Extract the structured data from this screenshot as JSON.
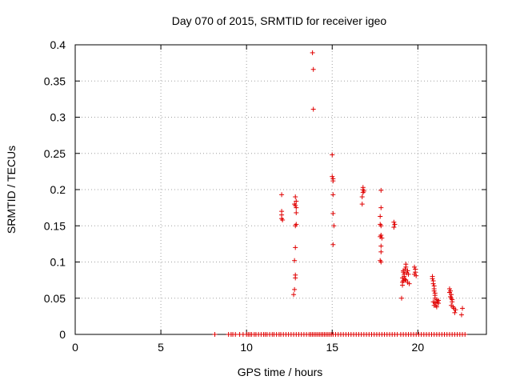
{
  "chart_data": {
    "type": "scatter",
    "title": "Day 070 of 2015, SRMTID for receiver igeo",
    "xlabel": "GPS time / hours",
    "ylabel": "SRMTID / TECUs",
    "xlim": [
      0,
      24
    ],
    "ylim": [
      0,
      0.4
    ],
    "grid": true,
    "x_ticks": [
      "0",
      "5",
      "10",
      "15",
      "20"
    ],
    "x_tick_values": [
      0,
      5,
      10,
      15,
      20
    ],
    "y_ticks": [
      "0",
      "0.05",
      "0.1",
      "0.15",
      "0.2",
      "0.25",
      "0.3",
      "0.35",
      "0.4"
    ],
    "y_tick_values": [
      0,
      0.05,
      0.1,
      0.15,
      0.2,
      0.25,
      0.3,
      0.35,
      0.4
    ],
    "marker": "+",
    "color": "#e00000",
    "series": [
      {
        "name": "SRMTID",
        "points": [
          [
            8.15,
            0
          ],
          [
            8.95,
            0
          ],
          [
            9.1,
            0
          ],
          [
            9.2,
            0
          ],
          [
            9.35,
            0
          ],
          [
            9.6,
            0
          ],
          [
            9.8,
            0
          ],
          [
            10.0,
            0
          ],
          [
            10.1,
            0
          ],
          [
            10.2,
            0
          ],
          [
            10.3,
            0
          ],
          [
            10.45,
            0
          ],
          [
            10.55,
            0
          ],
          [
            10.7,
            0
          ],
          [
            10.85,
            0
          ],
          [
            11.0,
            0
          ],
          [
            11.1,
            0
          ],
          [
            11.2,
            0
          ],
          [
            11.35,
            0
          ],
          [
            11.5,
            0
          ],
          [
            11.6,
            0
          ],
          [
            11.75,
            0
          ],
          [
            11.9,
            0
          ],
          [
            12.0,
            0
          ],
          [
            12.15,
            0
          ],
          [
            12.3,
            0
          ],
          [
            12.45,
            0
          ],
          [
            12.6,
            0
          ],
          [
            12.75,
            0
          ],
          [
            12.9,
            0
          ],
          [
            13.05,
            0
          ],
          [
            13.2,
            0
          ],
          [
            13.35,
            0
          ],
          [
            13.5,
            0
          ],
          [
            13.65,
            0
          ],
          [
            13.75,
            0
          ],
          [
            13.85,
            0
          ],
          [
            13.95,
            0
          ],
          [
            14.05,
            0
          ],
          [
            14.15,
            0
          ],
          [
            14.25,
            0
          ],
          [
            14.35,
            0
          ],
          [
            14.45,
            0
          ],
          [
            14.55,
            0
          ],
          [
            14.65,
            0
          ],
          [
            14.75,
            0
          ],
          [
            14.85,
            0
          ],
          [
            14.95,
            0
          ],
          [
            15.05,
            0
          ],
          [
            15.2,
            0
          ],
          [
            15.35,
            0
          ],
          [
            15.5,
            0
          ],
          [
            15.65,
            0
          ],
          [
            15.8,
            0
          ],
          [
            15.95,
            0
          ],
          [
            16.1,
            0
          ],
          [
            16.25,
            0
          ],
          [
            16.4,
            0
          ],
          [
            16.55,
            0
          ],
          [
            16.7,
            0
          ],
          [
            16.85,
            0
          ],
          [
            17.0,
            0
          ],
          [
            17.15,
            0
          ],
          [
            17.3,
            0
          ],
          [
            17.45,
            0
          ],
          [
            17.6,
            0
          ],
          [
            17.75,
            0
          ],
          [
            17.9,
            0
          ],
          [
            18.05,
            0
          ],
          [
            18.2,
            0
          ],
          [
            18.35,
            0
          ],
          [
            18.5,
            0
          ],
          [
            18.65,
            0
          ],
          [
            18.8,
            0
          ],
          [
            19.0,
            0
          ],
          [
            19.15,
            0
          ],
          [
            19.3,
            0
          ],
          [
            19.45,
            0
          ],
          [
            19.6,
            0
          ],
          [
            19.75,
            0
          ],
          [
            19.9,
            0
          ],
          [
            20.05,
            0
          ],
          [
            20.2,
            0
          ],
          [
            20.35,
            0
          ],
          [
            20.5,
            0
          ],
          [
            20.65,
            0
          ],
          [
            20.8,
            0
          ],
          [
            20.95,
            0
          ],
          [
            21.1,
            0
          ],
          [
            21.25,
            0
          ],
          [
            21.4,
            0
          ],
          [
            21.55,
            0
          ],
          [
            21.7,
            0
          ],
          [
            21.85,
            0
          ],
          [
            22.0,
            0
          ],
          [
            22.15,
            0
          ],
          [
            22.3,
            0
          ],
          [
            22.45,
            0
          ],
          [
            22.6,
            0
          ],
          [
            22.75,
            0
          ],
          [
            12.05,
            0.193
          ],
          [
            12.05,
            0.17
          ],
          [
            12.05,
            0.165
          ],
          [
            12.05,
            0.16
          ],
          [
            12.1,
            0.158
          ],
          [
            12.75,
            0.055
          ],
          [
            12.8,
            0.062
          ],
          [
            12.8,
            0.102
          ],
          [
            12.85,
            0.078
          ],
          [
            12.85,
            0.082
          ],
          [
            12.85,
            0.12
          ],
          [
            12.85,
            0.15
          ],
          [
            12.9,
            0.152
          ],
          [
            12.9,
            0.168
          ],
          [
            12.8,
            0.18
          ],
          [
            12.85,
            0.178
          ],
          [
            12.9,
            0.175
          ],
          [
            12.9,
            0.184
          ],
          [
            12.85,
            0.19
          ],
          [
            13.85,
            0.389
          ],
          [
            13.9,
            0.366
          ],
          [
            13.9,
            0.311
          ],
          [
            15.0,
            0.248
          ],
          [
            15.0,
            0.218
          ],
          [
            15.05,
            0.215
          ],
          [
            15.05,
            0.212
          ],
          [
            15.05,
            0.193
          ],
          [
            15.05,
            0.167
          ],
          [
            15.1,
            0.15
          ],
          [
            15.05,
            0.124
          ],
          [
            16.75,
            0.18
          ],
          [
            16.75,
            0.19
          ],
          [
            16.8,
            0.196
          ],
          [
            16.8,
            0.2
          ],
          [
            16.8,
            0.203
          ],
          [
            16.85,
            0.198
          ],
          [
            17.85,
            0.199
          ],
          [
            17.85,
            0.175
          ],
          [
            17.8,
            0.163
          ],
          [
            17.8,
            0.152
          ],
          [
            17.85,
            0.15
          ],
          [
            17.85,
            0.137
          ],
          [
            17.8,
            0.135
          ],
          [
            17.9,
            0.133
          ],
          [
            17.85,
            0.122
          ],
          [
            17.85,
            0.114
          ],
          [
            17.8,
            0.102
          ],
          [
            17.85,
            0.1
          ],
          [
            18.6,
            0.155
          ],
          [
            18.65,
            0.152
          ],
          [
            18.6,
            0.148
          ],
          [
            19.05,
            0.05
          ],
          [
            19.1,
            0.068
          ],
          [
            19.1,
            0.072
          ],
          [
            19.15,
            0.074
          ],
          [
            19.1,
            0.078
          ],
          [
            19.2,
            0.08
          ],
          [
            19.2,
            0.083
          ],
          [
            19.15,
            0.088
          ],
          [
            19.25,
            0.09
          ],
          [
            19.3,
            0.093
          ],
          [
            19.3,
            0.097
          ],
          [
            19.35,
            0.085
          ],
          [
            19.25,
            0.076
          ],
          [
            19.4,
            0.072
          ],
          [
            19.45,
            0.083
          ],
          [
            19.4,
            0.088
          ],
          [
            19.5,
            0.07
          ],
          [
            19.15,
            0.086
          ],
          [
            19.3,
            0.075
          ],
          [
            19.8,
            0.093
          ],
          [
            19.85,
            0.09
          ],
          [
            19.85,
            0.086
          ],
          [
            19.8,
            0.083
          ],
          [
            19.9,
            0.081
          ],
          [
            20.85,
            0.08
          ],
          [
            20.85,
            0.077
          ],
          [
            20.9,
            0.074
          ],
          [
            20.9,
            0.07
          ],
          [
            20.95,
            0.067
          ],
          [
            20.95,
            0.063
          ],
          [
            20.95,
            0.06
          ],
          [
            21.0,
            0.057
          ],
          [
            21.0,
            0.054
          ],
          [
            21.0,
            0.05
          ],
          [
            20.9,
            0.045
          ],
          [
            21.0,
            0.044
          ],
          [
            21.05,
            0.04
          ],
          [
            21.1,
            0.048
          ],
          [
            21.15,
            0.045
          ],
          [
            21.2,
            0.043
          ],
          [
            21.2,
            0.047
          ],
          [
            21.1,
            0.038
          ],
          [
            20.95,
            0.04
          ],
          [
            21.85,
            0.063
          ],
          [
            21.9,
            0.06
          ],
          [
            21.85,
            0.058
          ],
          [
            21.95,
            0.055
          ],
          [
            21.9,
            0.052
          ],
          [
            21.95,
            0.05
          ],
          [
            22.0,
            0.048
          ],
          [
            22.0,
            0.045
          ],
          [
            21.95,
            0.04
          ],
          [
            22.05,
            0.038
          ],
          [
            22.1,
            0.036
          ],
          [
            22.2,
            0.034
          ],
          [
            22.15,
            0.03
          ],
          [
            22.6,
            0.036
          ],
          [
            22.55,
            0.027
          ]
        ]
      }
    ]
  }
}
